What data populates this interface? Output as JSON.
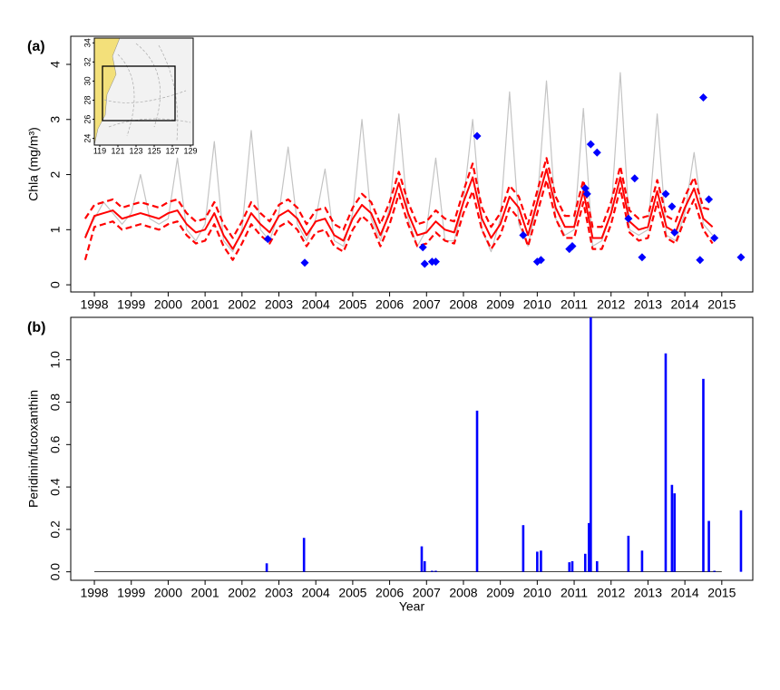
{
  "chart_data": [
    {
      "type": "line",
      "panel_label": "(a)",
      "ylabel": "Chla (mg/m³)",
      "xlim": [
        1997.36,
        2015.84
      ],
      "ylim": [
        -0.13,
        4.51
      ],
      "xticks": [
        1998,
        1999,
        2000,
        2001,
        2002,
        2003,
        2004,
        2005,
        2006,
        2007,
        2008,
        2009,
        2010,
        2011,
        2012,
        2013,
        2014,
        2015
      ],
      "yticks": [
        0,
        1,
        2,
        3,
        4
      ],
      "x": [
        1997.75,
        1998,
        1998.25,
        1998.5,
        1998.75,
        1999,
        1999.25,
        1999.5,
        1999.75,
        2000,
        2000.25,
        2000.5,
        2000.75,
        2001,
        2001.25,
        2001.5,
        2001.75,
        2002,
        2002.25,
        2002.5,
        2002.75,
        2003,
        2003.25,
        2003.5,
        2003.75,
        2004,
        2004.25,
        2004.5,
        2004.75,
        2005,
        2005.25,
        2005.5,
        2005.75,
        2006,
        2006.25,
        2006.5,
        2006.75,
        2007,
        2007.25,
        2007.5,
        2007.75,
        2008,
        2008.25,
        2008.5,
        2008.75,
        2009,
        2009.25,
        2009.5,
        2009.75,
        2010,
        2010.25,
        2010.5,
        2010.75,
        2011,
        2011.25,
        2011.5,
        2011.75,
        2012,
        2012.25,
        2012.5,
        2012.75,
        2013,
        2013.25,
        2013.5,
        2013.75,
        2014,
        2014.25,
        2014.5,
        2014.75
      ],
      "series": [
        {
          "type": "line",
          "color": "#c4c4c4",
          "dash": false,
          "width": 1.2,
          "values": [
            0.9,
            1.2,
            1.5,
            1.3,
            1.1,
            1.3,
            2.0,
            1.2,
            1.1,
            1.2,
            2.3,
            1.0,
            0.8,
            1.1,
            2.6,
            0.8,
            0.6,
            1.0,
            2.8,
            1.0,
            0.8,
            1.3,
            2.5,
            1.1,
            0.8,
            1.2,
            2.1,
            0.8,
            0.7,
            1.3,
            3.0,
            1.2,
            0.8,
            1.4,
            3.1,
            1.2,
            0.7,
            1.0,
            2.3,
            0.8,
            0.8,
            1.5,
            3.0,
            1.0,
            0.6,
            1.2,
            3.5,
            1.1,
            0.7,
            1.5,
            3.7,
            1.2,
            0.9,
            1.0,
            3.2,
            0.7,
            0.8,
            1.3,
            3.85,
            1.0,
            0.9,
            1.0,
            3.1,
            0.9,
            0.8,
            1.3,
            2.4,
            1.1,
            0.9
          ]
        },
        {
          "type": "line",
          "color": "#ff0000",
          "dash": true,
          "width": 2.2,
          "values": [
            1.2,
            1.45,
            1.5,
            1.55,
            1.4,
            1.45,
            1.5,
            1.45,
            1.4,
            1.5,
            1.55,
            1.3,
            1.15,
            1.2,
            1.5,
            1.1,
            0.85,
            1.15,
            1.5,
            1.3,
            1.15,
            1.45,
            1.55,
            1.4,
            1.1,
            1.35,
            1.4,
            1.1,
            1.0,
            1.4,
            1.65,
            1.5,
            1.1,
            1.5,
            2.05,
            1.5,
            1.1,
            1.15,
            1.35,
            1.2,
            1.15,
            1.7,
            2.2,
            1.4,
            1.05,
            1.3,
            1.8,
            1.6,
            1.1,
            1.7,
            2.3,
            1.6,
            1.25,
            1.25,
            1.9,
            1.05,
            1.05,
            1.5,
            2.15,
            1.35,
            1.2,
            1.25,
            1.9,
            1.25,
            1.15,
            1.6,
            1.95,
            1.4,
            1.35
          ]
        },
        {
          "type": "line",
          "color": "#ff0000",
          "dash": true,
          "width": 2.2,
          "values": [
            0.45,
            1.05,
            1.1,
            1.15,
            1.0,
            1.05,
            1.1,
            1.05,
            1.0,
            1.1,
            1.15,
            0.9,
            0.75,
            0.8,
            1.1,
            0.7,
            0.45,
            0.75,
            1.1,
            0.9,
            0.75,
            1.05,
            1.15,
            1.0,
            0.7,
            0.95,
            1.0,
            0.7,
            0.6,
            1.0,
            1.25,
            1.1,
            0.7,
            1.1,
            1.65,
            1.1,
            0.7,
            0.75,
            0.95,
            0.8,
            0.75,
            1.3,
            1.7,
            1.0,
            0.65,
            0.9,
            1.4,
            1.2,
            0.7,
            1.3,
            1.9,
            1.2,
            0.85,
            0.85,
            1.5,
            0.65,
            0.65,
            1.1,
            1.75,
            0.95,
            0.8,
            0.85,
            1.5,
            0.85,
            0.75,
            1.2,
            1.55,
            1.0,
            0.75
          ]
        },
        {
          "type": "line",
          "color": "#ff0000",
          "dash": false,
          "width": 2,
          "values": [
            0.85,
            1.25,
            1.3,
            1.35,
            1.2,
            1.25,
            1.3,
            1.25,
            1.2,
            1.3,
            1.35,
            1.1,
            0.95,
            1.0,
            1.3,
            0.9,
            0.65,
            0.95,
            1.3,
            1.1,
            0.95,
            1.25,
            1.35,
            1.2,
            0.9,
            1.15,
            1.2,
            0.9,
            0.8,
            1.2,
            1.45,
            1.3,
            0.9,
            1.3,
            1.85,
            1.3,
            0.9,
            0.95,
            1.15,
            1.0,
            0.95,
            1.5,
            1.95,
            1.2,
            0.85,
            1.1,
            1.6,
            1.4,
            0.9,
            1.5,
            2.1,
            1.4,
            1.05,
            1.05,
            1.7,
            0.85,
            0.85,
            1.3,
            1.95,
            1.15,
            1.0,
            1.05,
            1.7,
            1.05,
            0.95,
            1.4,
            1.75,
            1.2,
            1.05
          ]
        },
        {
          "type": "scatter",
          "color": "#0000ff",
          "x": [
            2002.7,
            2003.7,
            2006.9,
            2006.95,
            2007.15,
            2007.25,
            2008.37,
            2009.62,
            2010.0,
            2010.1,
            2010.87,
            2010.95,
            2011.3,
            2011.35,
            2011.45,
            2011.62,
            2012.47,
            2012.64,
            2012.84,
            2013.48,
            2013.65,
            2013.72,
            2014.41,
            2014.5,
            2014.65,
            2014.8,
            2015.52
          ],
          "values": [
            0.83,
            0.4,
            0.68,
            0.38,
            0.42,
            0.42,
            2.7,
            0.9,
            0.42,
            0.45,
            0.65,
            0.7,
            1.75,
            1.65,
            2.55,
            2.4,
            1.2,
            1.93,
            0.5,
            1.65,
            1.42,
            0.95,
            0.45,
            3.4,
            1.55,
            0.85,
            0.5
          ]
        }
      ],
      "inset": {
        "xlim": [
          118.4,
          129.3
        ],
        "ylim": [
          23.3,
          34.5
        ],
        "xticks": [
          119,
          121,
          123,
          125,
          127,
          129
        ],
        "yticks": [
          24,
          26,
          28,
          30,
          32,
          34
        ]
      }
    },
    {
      "type": "bar",
      "panel_label": "(b)",
      "ylabel": "Peridinin/fucoxanthin",
      "xlabel": "Year",
      "xlim": [
        1997.36,
        2015.84
      ],
      "ylim": [
        -0.04,
        1.2
      ],
      "xticks": [
        1998,
        1999,
        2000,
        2001,
        2002,
        2003,
        2004,
        2005,
        2006,
        2007,
        2008,
        2009,
        2010,
        2011,
        2012,
        2013,
        2014,
        2015
      ],
      "yticks": [
        {
          "value": 0,
          "label": "0.0"
        },
        0.2,
        0.4,
        0.6,
        0.8,
        {
          "value": 1,
          "label": "1.0"
        }
      ],
      "color": "#0000ff",
      "x": [
        2002.67,
        2003.68,
        2006.87,
        2006.95,
        2007.15,
        2007.25,
        2008.37,
        2009.62,
        2010.0,
        2010.1,
        2010.87,
        2010.95,
        2011.3,
        2011.4,
        2011.45,
        2011.62,
        2012.47,
        2012.84,
        2013.48,
        2013.65,
        2013.72,
        2014.5,
        2014.65,
        2014.8,
        2015.52
      ],
      "values": [
        0.04,
        0.16,
        0.12,
        0.05,
        0.005,
        0.005,
        0.76,
        0.22,
        0.095,
        0.1,
        0.045,
        0.05,
        0.085,
        0.23,
        1.2,
        0.05,
        0.17,
        0.1,
        1.03,
        0.41,
        0.37,
        0.91,
        0.24,
        0.005,
        0.29
      ]
    }
  ]
}
